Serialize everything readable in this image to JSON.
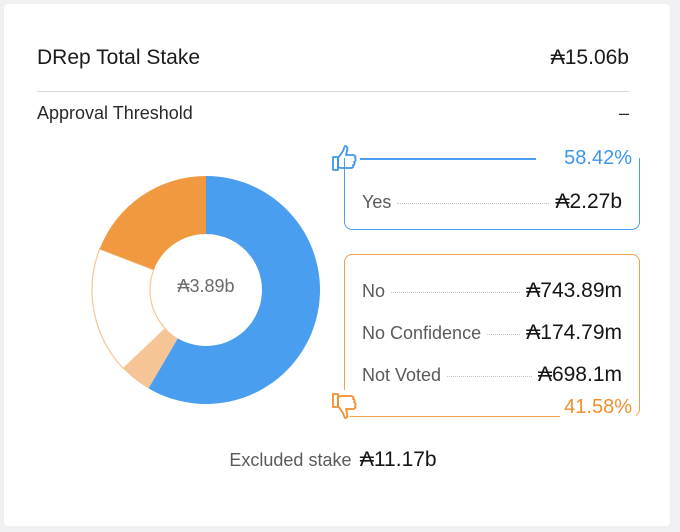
{
  "header": {
    "title": "DRep Total Stake",
    "value": "₳15.06b"
  },
  "threshold": {
    "label": "Approval Threshold",
    "value": "–"
  },
  "donut": {
    "center_label": "₳3.89b",
    "segments": [
      {
        "name": "Yes",
        "fraction": 0.5842,
        "color": "#4a9ef0"
      },
      {
        "name": "No Confidence",
        "fraction": 0.045,
        "color": "#f5c596"
      },
      {
        "name": "Not Voted",
        "fraction": 0.1795,
        "color": "#ffffff"
      },
      {
        "name": "No",
        "fraction": 0.1913,
        "color": "#f0993f"
      }
    ]
  },
  "yes": {
    "percent": "58.42%",
    "rows": [
      {
        "label": "Yes",
        "value": "₳2.27b"
      }
    ],
    "color": "#3d97ee"
  },
  "no": {
    "percent": "41.58%",
    "color": "#f08f2e",
    "rows": [
      {
        "label": "No",
        "value": "₳743.89m"
      },
      {
        "label": "No Confidence",
        "value": "₳174.79m"
      },
      {
        "label": "Not Voted",
        "value": "₳698.1m"
      }
    ]
  },
  "excluded": {
    "label": "Excluded stake",
    "value": "₳11.17b"
  },
  "icons": {
    "yes": "thumbs-up-icon",
    "no": "thumbs-down-icon"
  }
}
